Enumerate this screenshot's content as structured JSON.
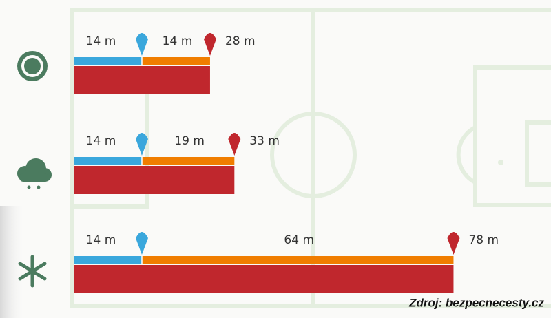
{
  "chart_data": {
    "type": "bar",
    "categories": [
      null,
      null,
      null
    ],
    "series": [
      {
        "color": "#3aa7dc",
        "values": [
          14,
          14,
          14
        ],
        "value_labels": [
          "14 m",
          "14 m",
          "14 m"
        ]
      },
      {
        "color": "#f07d00",
        "values": [
          14,
          19,
          64
        ],
        "value_labels": [
          "14 m",
          "19 m",
          "64 m"
        ]
      },
      {
        "color": "#c0272d",
        "values": [
          28,
          33,
          78
        ],
        "value_labels": [
          "28 m",
          "33 m",
          "78 m"
        ]
      }
    ],
    "source": "Zdroj: bezpecnecesty.cz"
  }
}
